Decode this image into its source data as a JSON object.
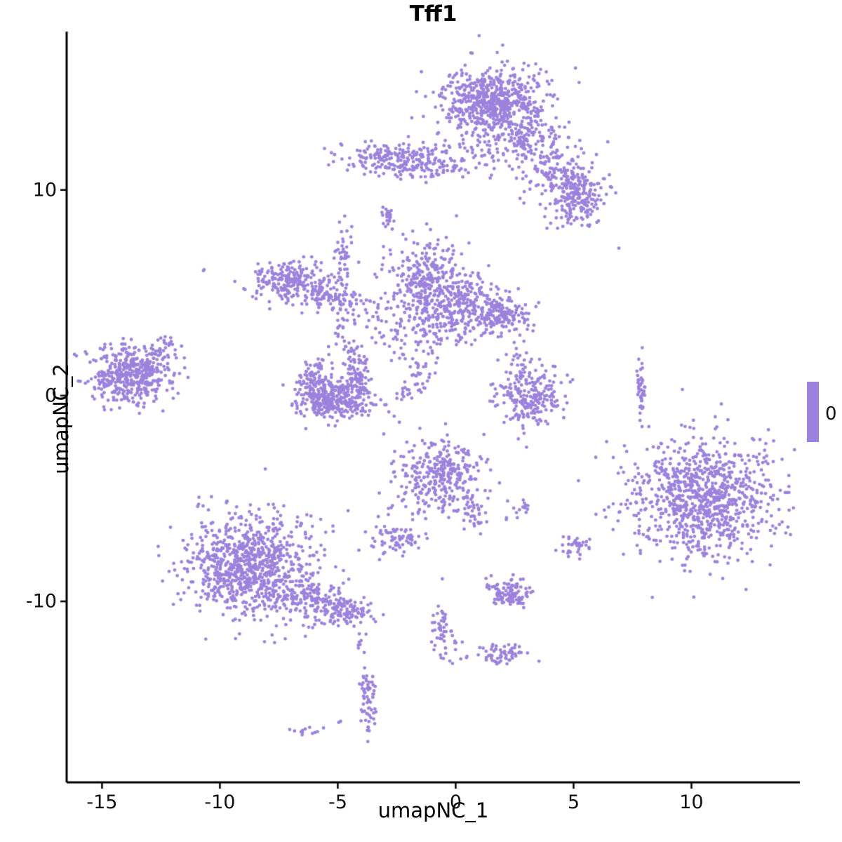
{
  "title": "Tff1",
  "axes": {
    "x_label": "umapNC_1",
    "y_label": "umapNC_2",
    "x_ticks": [
      -15,
      -10,
      -5,
      0,
      5,
      10
    ],
    "y_ticks": [
      -10,
      0,
      10
    ]
  },
  "legend": {
    "label": "0",
    "color": "#9C82DC",
    "position": "right"
  },
  "chart_data": {
    "type": "scatter",
    "title": "Tff1",
    "xlabel": "umapNC_1",
    "ylabel": "umapNC_2",
    "xlim": [
      -16.5,
      14.6
    ],
    "ylim": [
      -18.8,
      17.7
    ],
    "x_ticks": [
      -15,
      -10,
      -5,
      0,
      5,
      10
    ],
    "y_ticks": [
      -10,
      0,
      10
    ],
    "grid": false,
    "legend_position": "right",
    "point_color": "#9C82DC",
    "point_radius_px": 2.4,
    "series": [
      {
        "name": "0",
        "clusters": [
          {
            "x": 1.6,
            "y": 14.3,
            "sx": 1.1,
            "sy": 0.9,
            "n": 650
          },
          {
            "x": 2.9,
            "y": 12.6,
            "sx": 0.7,
            "sy": 0.7,
            "n": 120
          },
          {
            "x": 4.2,
            "y": 11.0,
            "sx": 0.8,
            "sy": 0.8,
            "n": 140
          },
          {
            "x": 5.2,
            "y": 9.6,
            "sx": 0.55,
            "sy": 0.65,
            "n": 200
          },
          {
            "x": 1.2,
            "y": 11.9,
            "sx": 0.9,
            "sy": 0.6,
            "n": 40
          },
          {
            "x": -2.4,
            "y": 11.5,
            "sx": 1.1,
            "sy": 0.4,
            "n": 220
          },
          {
            "x": -0.6,
            "y": 11.1,
            "sx": 0.7,
            "sy": 0.3,
            "n": 50
          },
          {
            "x": -2.9,
            "y": 8.6,
            "sx": 0.15,
            "sy": 0.35,
            "n": 25
          },
          {
            "x": -1.2,
            "y": 5.4,
            "sx": 0.75,
            "sy": 1.0,
            "n": 330
          },
          {
            "x": 0.6,
            "y": 4.4,
            "sx": 0.9,
            "sy": 0.7,
            "n": 230
          },
          {
            "x": 2.1,
            "y": 3.9,
            "sx": 0.55,
            "sy": 0.5,
            "n": 130
          },
          {
            "x": -0.9,
            "y": 3.2,
            "sx": 0.9,
            "sy": 0.4,
            "n": 60
          },
          {
            "x": -3.5,
            "y": 3.9,
            "sx": 0.4,
            "sy": 0.6,
            "n": 25
          },
          {
            "x": -6.9,
            "y": 5.5,
            "sx": 0.85,
            "sy": 0.5,
            "n": 240
          },
          {
            "x": -5.4,
            "y": 4.7,
            "sx": 0.7,
            "sy": 0.35,
            "n": 70
          },
          {
            "x": -4.8,
            "y": 6.8,
            "sx": 0.2,
            "sy": 0.7,
            "n": 40
          },
          {
            "x": -4.6,
            "y": 2.9,
            "sx": 0.3,
            "sy": 1.1,
            "n": 55
          },
          {
            "x": -6.1,
            "y": 0.8,
            "sx": 0.35,
            "sy": 0.55,
            "n": 90
          },
          {
            "x": -5.1,
            "y": -0.2,
            "sx": 0.85,
            "sy": 0.45,
            "n": 300
          },
          {
            "x": -4.2,
            "y": 0.9,
            "sx": 0.3,
            "sy": 0.5,
            "n": 80
          },
          {
            "x": -13.8,
            "y": 1.0,
            "sx": 0.85,
            "sy": 0.7,
            "n": 450
          },
          {
            "x": -12.3,
            "y": 2.3,
            "sx": 0.35,
            "sy": 0.35,
            "n": 30
          },
          {
            "x": -10.7,
            "y": 6.1,
            "sx": 0.05,
            "sy": 0.05,
            "n": 2
          },
          {
            "x": -1.7,
            "y": 0.9,
            "sx": 0.3,
            "sy": 0.9,
            "n": 55,
            "rot": -25
          },
          {
            "x": -2.4,
            "y": 2.6,
            "sx": 0.5,
            "sy": 0.7,
            "n": 25
          },
          {
            "x": 3.2,
            "y": -0.1,
            "sx": 0.65,
            "sy": 0.75,
            "n": 220
          },
          {
            "x": 2.7,
            "y": 1.4,
            "sx": 0.4,
            "sy": 0.5,
            "n": 25
          },
          {
            "x": 7.9,
            "y": 0.3,
            "sx": 0.12,
            "sy": 0.7,
            "n": 45
          },
          {
            "x": -0.6,
            "y": -3.9,
            "sx": 0.95,
            "sy": 0.85,
            "n": 320
          },
          {
            "x": 0.7,
            "y": -5.5,
            "sx": 0.35,
            "sy": 0.55,
            "n": 45
          },
          {
            "x": 2.7,
            "y": -5.5,
            "sx": 0.25,
            "sy": 0.3,
            "n": 16
          },
          {
            "x": 10.5,
            "y": -4.9,
            "sx": 1.6,
            "sy": 1.45,
            "n": 950
          },
          {
            "x": -2.5,
            "y": -7.0,
            "sx": 0.5,
            "sy": 0.4,
            "n": 70
          },
          {
            "x": -1.9,
            "y": -5.9,
            "sx": 0.3,
            "sy": 0.3,
            "n": 8
          },
          {
            "x": 5.1,
            "y": -7.3,
            "sx": 0.3,
            "sy": 0.28,
            "n": 35
          },
          {
            "x": -8.8,
            "y": -8.2,
            "sx": 1.35,
            "sy": 1.25,
            "n": 880
          },
          {
            "x": -6.0,
            "y": -9.9,
            "sx": 0.9,
            "sy": 0.5,
            "n": 170,
            "rot": -20
          },
          {
            "x": -4.5,
            "y": -10.5,
            "sx": 0.5,
            "sy": 0.35,
            "n": 70
          },
          {
            "x": 2.3,
            "y": -9.7,
            "sx": 0.45,
            "sy": 0.35,
            "n": 120
          },
          {
            "x": -0.6,
            "y": -11.4,
            "sx": 0.2,
            "sy": 0.8,
            "n": 45
          },
          {
            "x": 0.0,
            "y": -12.4,
            "sx": 0.3,
            "sy": 0.4,
            "n": 10
          },
          {
            "x": 2.1,
            "y": -12.6,
            "sx": 0.55,
            "sy": 0.3,
            "n": 60
          },
          {
            "x": -3.7,
            "y": -14.7,
            "sx": 0.2,
            "sy": 0.8,
            "n": 60
          },
          {
            "x": -4.0,
            "y": -12.1,
            "sx": 0.15,
            "sy": 0.3,
            "n": 8
          },
          {
            "x": -6.4,
            "y": -16.3,
            "sx": 0.3,
            "sy": 0.12,
            "n": 12
          },
          {
            "x": -4.9,
            "y": -15.8,
            "sx": 0.05,
            "sy": 0.05,
            "n": 2
          },
          {
            "x": 6.9,
            "y": 7.3,
            "sx": 0.03,
            "sy": 0.03,
            "n": 1
          }
        ]
      }
    ]
  }
}
